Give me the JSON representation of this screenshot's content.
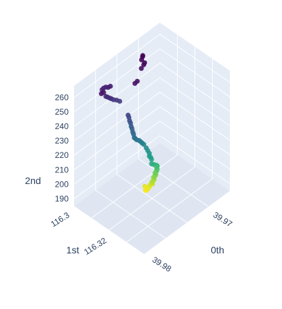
{
  "chart_data": {
    "type": "scatter3d",
    "colorscale": "viridis",
    "axes": {
      "x": {
        "title": "0th",
        "ticks": [
          "39.97",
          "39.98"
        ]
      },
      "y": {
        "title": "1st",
        "ticks": [
          "116.3",
          "116.32"
        ]
      },
      "z": {
        "title": "2nd",
        "ticks": [
          "190",
          "200",
          "210",
          "220",
          "230",
          "240",
          "250",
          "260"
        ],
        "range": [
          185,
          268
        ]
      }
    },
    "scene_background": "#e5ecf6",
    "colors": {
      "text": "#2a3f5f",
      "grid": "#ffffff",
      "floor": "#dfe6f2",
      "wall": "#e5ecf6"
    },
    "series": [
      {
        "points": [
          {
            "x": 0.5,
            "y": 0.58,
            "z": 188.0,
            "c": 1.0
          },
          {
            "x": 0.49,
            "y": 0.58,
            "z": 188.4,
            "c": 0.99
          },
          {
            "x": 0.51,
            "y": 0.57,
            "z": 188.8,
            "c": 0.98
          },
          {
            "x": 0.5,
            "y": 0.59,
            "z": 189.2,
            "c": 0.98
          },
          {
            "x": 0.52,
            "y": 0.57,
            "z": 189.6,
            "c": 0.97
          },
          {
            "x": 0.5,
            "y": 0.58,
            "z": 190.0,
            "c": 0.96
          },
          {
            "x": 0.52,
            "y": 0.56,
            "z": 190.4,
            "c": 0.95
          },
          {
            "x": 0.49,
            "y": 0.59,
            "z": 190.8,
            "c": 0.95
          },
          {
            "x": 0.53,
            "y": 0.56,
            "z": 191.2,
            "c": 0.93
          },
          {
            "x": 0.54,
            "y": 0.54,
            "z": 192.0,
            "c": 0.91
          },
          {
            "x": 0.54,
            "y": 0.55,
            "z": 193.0,
            "c": 0.89
          },
          {
            "x": 0.55,
            "y": 0.54,
            "z": 194.0,
            "c": 0.87
          },
          {
            "x": 0.55,
            "y": 0.53,
            "z": 195.0,
            "c": 0.85
          },
          {
            "x": 0.55,
            "y": 0.54,
            "z": 196.0,
            "c": 0.83
          },
          {
            "x": 0.56,
            "y": 0.53,
            "z": 197.0,
            "c": 0.81
          },
          {
            "x": 0.56,
            "y": 0.52,
            "z": 198.0,
            "c": 0.79
          },
          {
            "x": 0.56,
            "y": 0.53,
            "z": 199.0,
            "c": 0.77
          },
          {
            "x": 0.57,
            "y": 0.52,
            "z": 200.0,
            "c": 0.75
          },
          {
            "x": 0.57,
            "y": 0.52,
            "z": 201.0,
            "c": 0.73
          },
          {
            "x": 0.57,
            "y": 0.51,
            "z": 202.0,
            "c": 0.71
          },
          {
            "x": 0.57,
            "y": 0.52,
            "z": 203.0,
            "c": 0.69
          },
          {
            "x": 0.57,
            "y": 0.51,
            "z": 204.0,
            "c": 0.67
          },
          {
            "x": 0.56,
            "y": 0.51,
            "z": 205.0,
            "c": 0.65
          },
          {
            "x": 0.54,
            "y": 0.52,
            "z": 206.0,
            "c": 0.63
          },
          {
            "x": 0.52,
            "y": 0.53,
            "z": 207.0,
            "c": 0.61
          },
          {
            "x": 0.52,
            "y": 0.53,
            "z": 210.0,
            "c": 0.59
          },
          {
            "x": 0.52,
            "y": 0.54,
            "z": 211.0,
            "c": 0.57
          },
          {
            "x": 0.51,
            "y": 0.55,
            "z": 212.0,
            "c": 0.55
          },
          {
            "x": 0.51,
            "y": 0.55,
            "z": 214.0,
            "c": 0.53
          },
          {
            "x": 0.5,
            "y": 0.56,
            "z": 216.0,
            "c": 0.51
          },
          {
            "x": 0.49,
            "y": 0.57,
            "z": 218.0,
            "c": 0.49
          },
          {
            "x": 0.47,
            "y": 0.58,
            "z": 221.0,
            "c": 0.47
          },
          {
            "x": 0.46,
            "y": 0.59,
            "z": 222.0,
            "c": 0.45
          },
          {
            "x": 0.45,
            "y": 0.6,
            "z": 223.0,
            "c": 0.43
          },
          {
            "x": 0.44,
            "y": 0.61,
            "z": 224.0,
            "c": 0.41
          },
          {
            "x": 0.42,
            "y": 0.62,
            "z": 225.0,
            "c": 0.39
          },
          {
            "x": 0.41,
            "y": 0.63,
            "z": 226.0,
            "c": 0.37
          },
          {
            "x": 0.4,
            "y": 0.63,
            "z": 227.0,
            "c": 0.36
          },
          {
            "x": 0.4,
            "y": 0.64,
            "z": 229.0,
            "c": 0.34
          },
          {
            "x": 0.39,
            "y": 0.64,
            "z": 231.0,
            "c": 0.32
          },
          {
            "x": 0.39,
            "y": 0.65,
            "z": 233.0,
            "c": 0.3
          },
          {
            "x": 0.38,
            "y": 0.65,
            "z": 235.0,
            "c": 0.28
          },
          {
            "x": 0.38,
            "y": 0.66,
            "z": 237.0,
            "c": 0.26
          },
          {
            "x": 0.37,
            "y": 0.66,
            "z": 239.0,
            "c": 0.24
          },
          {
            "x": 0.37,
            "y": 0.67,
            "z": 241.0,
            "c": 0.22
          },
          {
            "x": 0.36,
            "y": 0.67,
            "z": 243.0,
            "c": 0.2
          },
          {
            "x": 0.32,
            "y": 0.74,
            "z": 252.0,
            "c": 0.18
          },
          {
            "x": 0.3,
            "y": 0.76,
            "z": 253.0,
            "c": 0.17
          },
          {
            "x": 0.28,
            "y": 0.78,
            "z": 253.5,
            "c": 0.16
          },
          {
            "x": 0.27,
            "y": 0.8,
            "z": 254.0,
            "c": 0.15
          },
          {
            "x": 0.26,
            "y": 0.81,
            "z": 254.5,
            "c": 0.14
          },
          {
            "x": 0.25,
            "y": 0.83,
            "z": 255.0,
            "c": 0.13
          },
          {
            "x": 0.24,
            "y": 0.84,
            "z": 255.5,
            "c": 0.12
          },
          {
            "x": 0.22,
            "y": 0.87,
            "z": 260.0,
            "c": 0.11
          },
          {
            "x": 0.23,
            "y": 0.86,
            "z": 261.0,
            "c": 0.1
          },
          {
            "x": 0.24,
            "y": 0.84,
            "z": 262.0,
            "c": 0.09
          },
          {
            "x": 0.25,
            "y": 0.82,
            "z": 262.0,
            "c": 0.08
          },
          {
            "x": 0.26,
            "y": 0.8,
            "z": 263.0,
            "c": 0.07
          },
          {
            "x": 0.23,
            "y": 0.86,
            "z": 258.0,
            "c": 0.06
          },
          {
            "x": 0.22,
            "y": 0.88,
            "z": 257.0,
            "c": 0.05
          },
          {
            "x": 0.48,
            "y": 0.72,
            "z": 258.0,
            "c": 0.05
          },
          {
            "x": 0.5,
            "y": 0.71,
            "z": 259.0,
            "c": 0.04
          },
          {
            "x": 0.58,
            "y": 0.75,
            "z": 263.0,
            "c": 0.04
          },
          {
            "x": 0.6,
            "y": 0.74,
            "z": 265.0,
            "c": 0.03
          },
          {
            "x": 0.61,
            "y": 0.74,
            "z": 266.0,
            "c": 0.02
          },
          {
            "x": 0.64,
            "y": 0.82,
            "z": 264.0,
            "c": 0.02
          },
          {
            "x": 0.67,
            "y": 0.84,
            "z": 265.0,
            "c": 0.01
          },
          {
            "x": 0.66,
            "y": 0.83,
            "z": 265.0,
            "c": 0.0
          }
        ]
      }
    ]
  }
}
